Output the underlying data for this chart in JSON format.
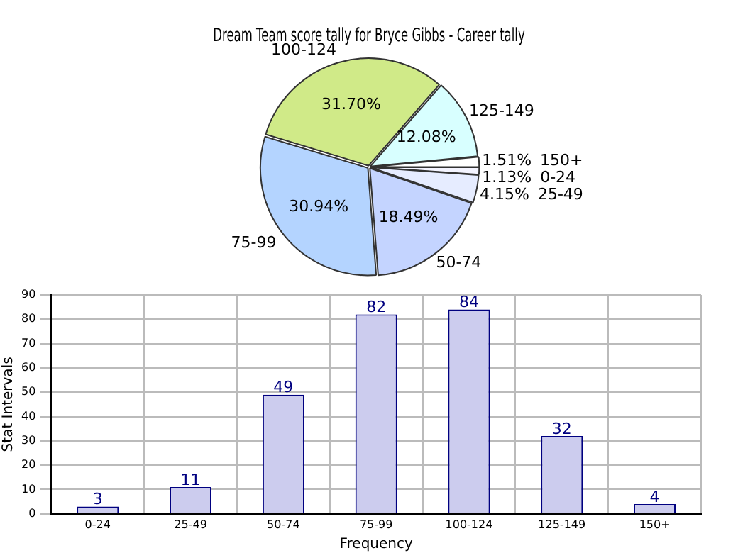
{
  "chart_data": [
    {
      "type": "pie",
      "title": "Dream Team score tally for Bryce Gibbs - Career tally",
      "categories": [
        "0-24",
        "25-49",
        "50-74",
        "75-99",
        "100-124",
        "125-149",
        "150+"
      ],
      "values": [
        1.13,
        4.15,
        18.49,
        30.94,
        31.7,
        12.08,
        1.51
      ],
      "value_labels": [
        "1.13%",
        "4.15%",
        "18.49%",
        "30.94%",
        "31.70%",
        "12.08%",
        "1.51%"
      ],
      "colors": [
        "#f4f4ff",
        "#e6ecff",
        "#c4d4ff",
        "#b4d4ff",
        "#d0ea88",
        "#d8ffff",
        "#ffffff"
      ],
      "legend": false
    },
    {
      "type": "bar",
      "xlabel": "Frequency",
      "ylabel": "Stat Intervals",
      "categories": [
        "0-24",
        "25-49",
        "50-74",
        "75-99",
        "100-124",
        "125-149",
        "150+"
      ],
      "values": [
        3,
        11,
        49,
        82,
        84,
        32,
        4
      ],
      "color": "#ccccee",
      "ylim": [
        0,
        90
      ],
      "yticks": [
        0,
        10,
        20,
        30,
        40,
        50,
        60,
        70,
        80,
        90
      ],
      "grid": true,
      "data_labels": true,
      "legend": false
    }
  ]
}
